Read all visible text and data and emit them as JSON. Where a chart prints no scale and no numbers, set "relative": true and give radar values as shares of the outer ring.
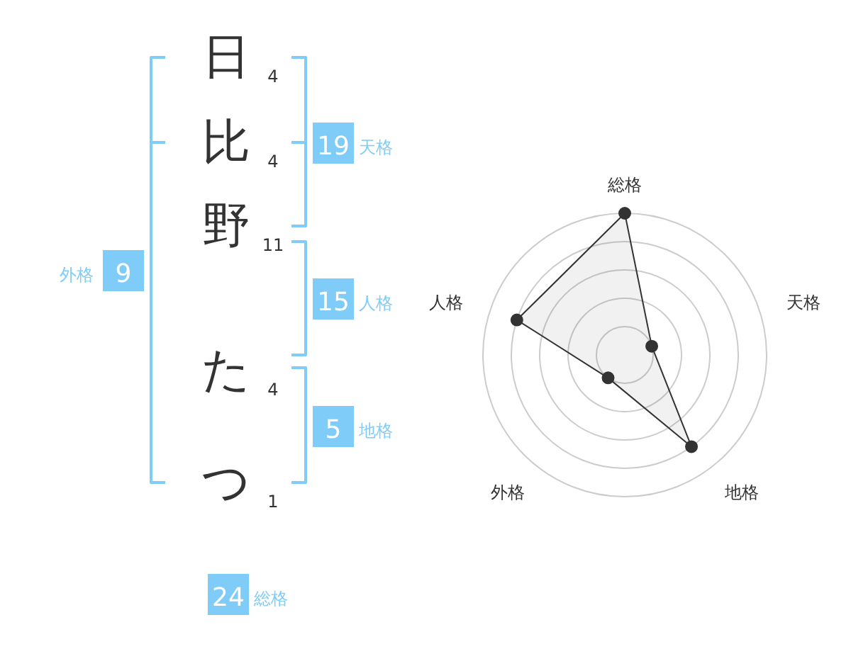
{
  "chart_data": [
    {
      "type": "other",
      "categories": [
        "日",
        "比",
        "野",
        "た",
        "つ"
      ],
      "values": [
        4,
        4,
        11,
        4,
        1
      ],
      "data_labels": true
    },
    {
      "type": "other",
      "categories": [
        "天格",
        "人格",
        "地格",
        "外格",
        "総格"
      ],
      "values": [
        19,
        15,
        5,
        9,
        24
      ],
      "colors": [
        "#80ccf8",
        "#80ccf8",
        "#80ccf8",
        "#80ccf8",
        "#80ccf8"
      ],
      "data_labels": true
    },
    {
      "type": "radar",
      "categories": [
        "総格",
        "天格",
        "地格",
        "外格",
        "人格"
      ],
      "relative": true,
      "grid": true,
      "marker": "circle",
      "series": [
        {
          "color": "#333333",
          "values": [
            1,
            0.2,
            0.8,
            0.2,
            0.8
          ]
        }
      ]
    }
  ]
}
